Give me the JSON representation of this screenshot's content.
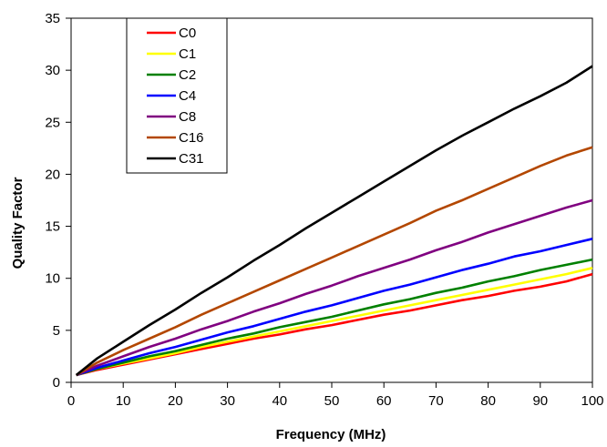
{
  "chart_data": {
    "type": "line",
    "title": "",
    "xlabel": "Frequency (MHz)",
    "ylabel": "Quality Factor",
    "xlim": [
      0,
      100
    ],
    "ylim": [
      0,
      35
    ],
    "x_ticks": [
      0,
      10,
      20,
      30,
      40,
      50,
      60,
      70,
      80,
      90,
      100
    ],
    "y_ticks": [
      0,
      5,
      10,
      15,
      20,
      25,
      30,
      35
    ],
    "grid": false,
    "legend_position": "top-left",
    "x": [
      1,
      5,
      10,
      15,
      20,
      25,
      30,
      35,
      40,
      45,
      50,
      55,
      60,
      65,
      70,
      75,
      80,
      85,
      90,
      95,
      100
    ],
    "series": [
      {
        "name": "C0",
        "color": "#ff0000",
        "values": [
          0.7,
          1.2,
          1.7,
          2.2,
          2.7,
          3.2,
          3.7,
          4.2,
          4.6,
          5.1,
          5.5,
          6.0,
          6.5,
          6.9,
          7.4,
          7.9,
          8.3,
          8.8,
          9.2,
          9.7,
          10.4
        ]
      },
      {
        "name": "C1",
        "color": "#ffff00",
        "values": [
          0.7,
          1.3,
          1.8,
          2.3,
          2.8,
          3.4,
          3.9,
          4.4,
          4.9,
          5.4,
          5.9,
          6.4,
          6.9,
          7.4,
          7.9,
          8.4,
          8.9,
          9.4,
          9.9,
          10.4,
          11.0
        ]
      },
      {
        "name": "C2",
        "color": "#008000",
        "values": [
          0.7,
          1.3,
          1.9,
          2.5,
          3.0,
          3.6,
          4.2,
          4.7,
          5.3,
          5.8,
          6.3,
          6.9,
          7.5,
          8.0,
          8.6,
          9.1,
          9.7,
          10.2,
          10.8,
          11.3,
          11.8
        ]
      },
      {
        "name": "C4",
        "color": "#0000ff",
        "values": [
          0.7,
          1.4,
          2.1,
          2.8,
          3.4,
          4.1,
          4.8,
          5.4,
          6.1,
          6.8,
          7.4,
          8.1,
          8.8,
          9.4,
          10.1,
          10.8,
          11.4,
          12.1,
          12.6,
          13.2,
          13.8
        ]
      },
      {
        "name": "C8",
        "color": "#800080",
        "values": [
          0.7,
          1.6,
          2.5,
          3.4,
          4.2,
          5.1,
          5.9,
          6.8,
          7.6,
          8.5,
          9.3,
          10.2,
          11.0,
          11.8,
          12.7,
          13.5,
          14.4,
          15.2,
          16.0,
          16.8,
          17.5
        ]
      },
      {
        "name": "C16",
        "color": "#b34700",
        "values": [
          0.7,
          1.9,
          3.1,
          4.2,
          5.3,
          6.5,
          7.6,
          8.7,
          9.8,
          10.9,
          12.0,
          13.1,
          14.2,
          15.3,
          16.5,
          17.5,
          18.6,
          19.7,
          20.8,
          21.8,
          22.6
        ]
      },
      {
        "name": "C31",
        "color": "#000000",
        "values": [
          0.7,
          2.3,
          3.9,
          5.5,
          7.0,
          8.6,
          10.1,
          11.7,
          13.2,
          14.8,
          16.3,
          17.8,
          19.3,
          20.8,
          22.3,
          23.7,
          25.0,
          26.3,
          27.5,
          28.8,
          30.4
        ]
      }
    ]
  }
}
